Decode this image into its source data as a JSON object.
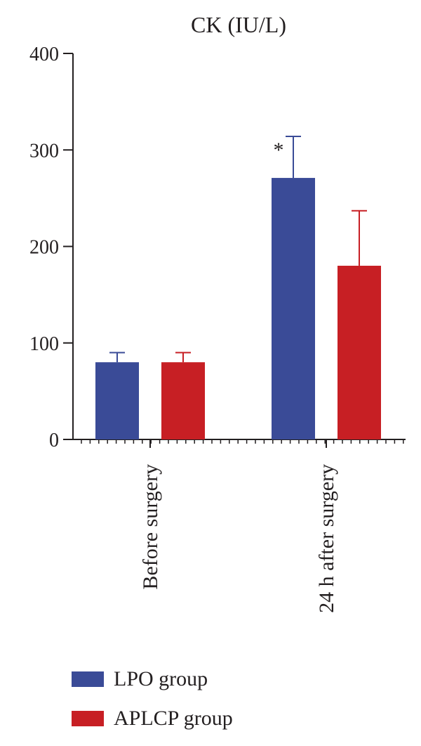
{
  "chart_data": {
    "type": "bar",
    "title": "CK (IU/L)",
    "categories": [
      "Before surgery",
      "24 h after surgery"
    ],
    "ylim": [
      0,
      400
    ],
    "yticks": [
      0,
      100,
      200,
      300,
      400
    ],
    "series": [
      {
        "name": "LPO group",
        "color": "#3a4b97",
        "values": [
          80,
          271
        ],
        "errors": [
          10,
          43
        ]
      },
      {
        "name": "APLCP group",
        "color": "#c71f24",
        "values": [
          80,
          180
        ],
        "errors": [
          10,
          57
        ]
      }
    ],
    "annotations": [
      {
        "text": "*",
        "category": "24 h after surgery",
        "series": "LPO group"
      }
    ],
    "legend_position": "bottom-left",
    "grid": false
  }
}
